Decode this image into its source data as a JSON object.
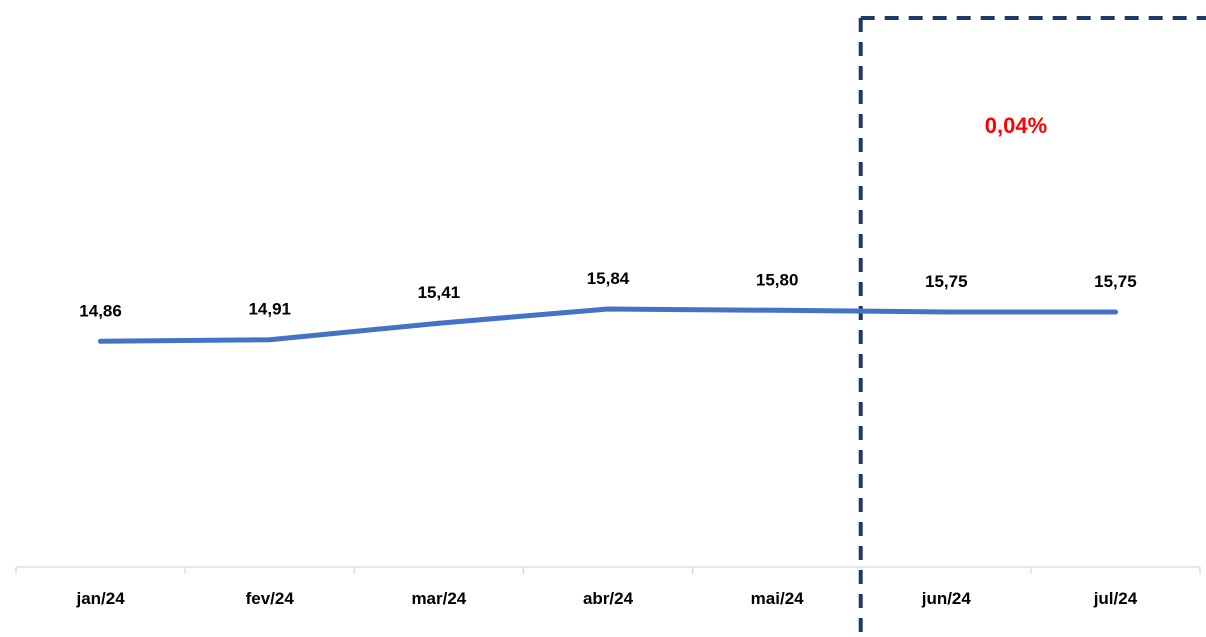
{
  "chart_data": {
    "type": "line",
    "title": "",
    "xlabel": "",
    "ylabel": "",
    "categories": [
      "jan/24",
      "fev/24",
      "mar/24",
      "abr/24",
      "mai/24",
      "jun/24",
      "jul/24"
    ],
    "series": [
      {
        "values": [
          14.86,
          14.91,
          15.41,
          15.84,
          15.8,
          15.75,
          15.75
        ],
        "color": "#4472C4"
      }
    ],
    "data_labels": [
      "14,86",
      "14,91",
      "15,41",
      "15,84",
      "15,80",
      "15,75",
      "15,75"
    ],
    "grid": false,
    "legend": "none",
    "annotation": {
      "text": "0,04%",
      "color": "#FF0000",
      "box_color": "#1F3864",
      "box_style": "dashed",
      "spans_categories": [
        "jun/24",
        "jul/24"
      ]
    }
  }
}
